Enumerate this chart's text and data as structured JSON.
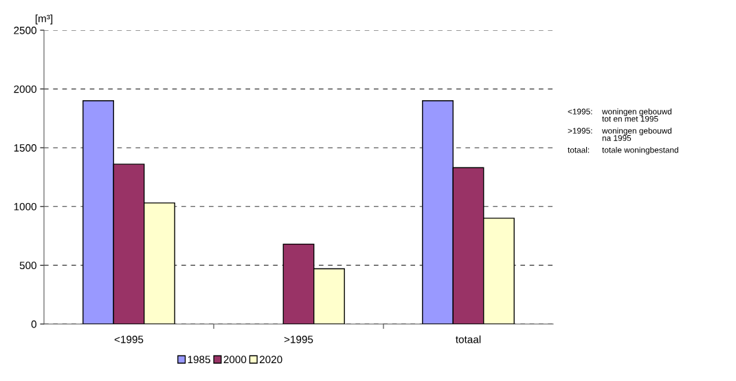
{
  "chart_data": {
    "type": "bar",
    "ylabel": "[m³]",
    "categories": [
      "<1995",
      ">1995",
      "totaal"
    ],
    "series": [
      {
        "name": "1985",
        "color": "#9999ff",
        "values": [
          1900,
          null,
          1900
        ]
      },
      {
        "name": "2000",
        "color": "#993366",
        "values": [
          1360,
          680,
          1330
        ]
      },
      {
        "name": "2020",
        "color": "#ffffcc",
        "values": [
          1030,
          470,
          900
        ]
      }
    ],
    "ylim": [
      0,
      2500
    ],
    "yticks": [
      0,
      500,
      1000,
      1500,
      2000,
      2500
    ],
    "grid": "y",
    "legend": "bottom",
    "annotations": [
      "<1995:",
      "woningen gebouwd\ntot en met 1995",
      ">1995:",
      "woningen gebouwd\nna 1995",
      "totaal:",
      "totale woningbestand"
    ]
  }
}
